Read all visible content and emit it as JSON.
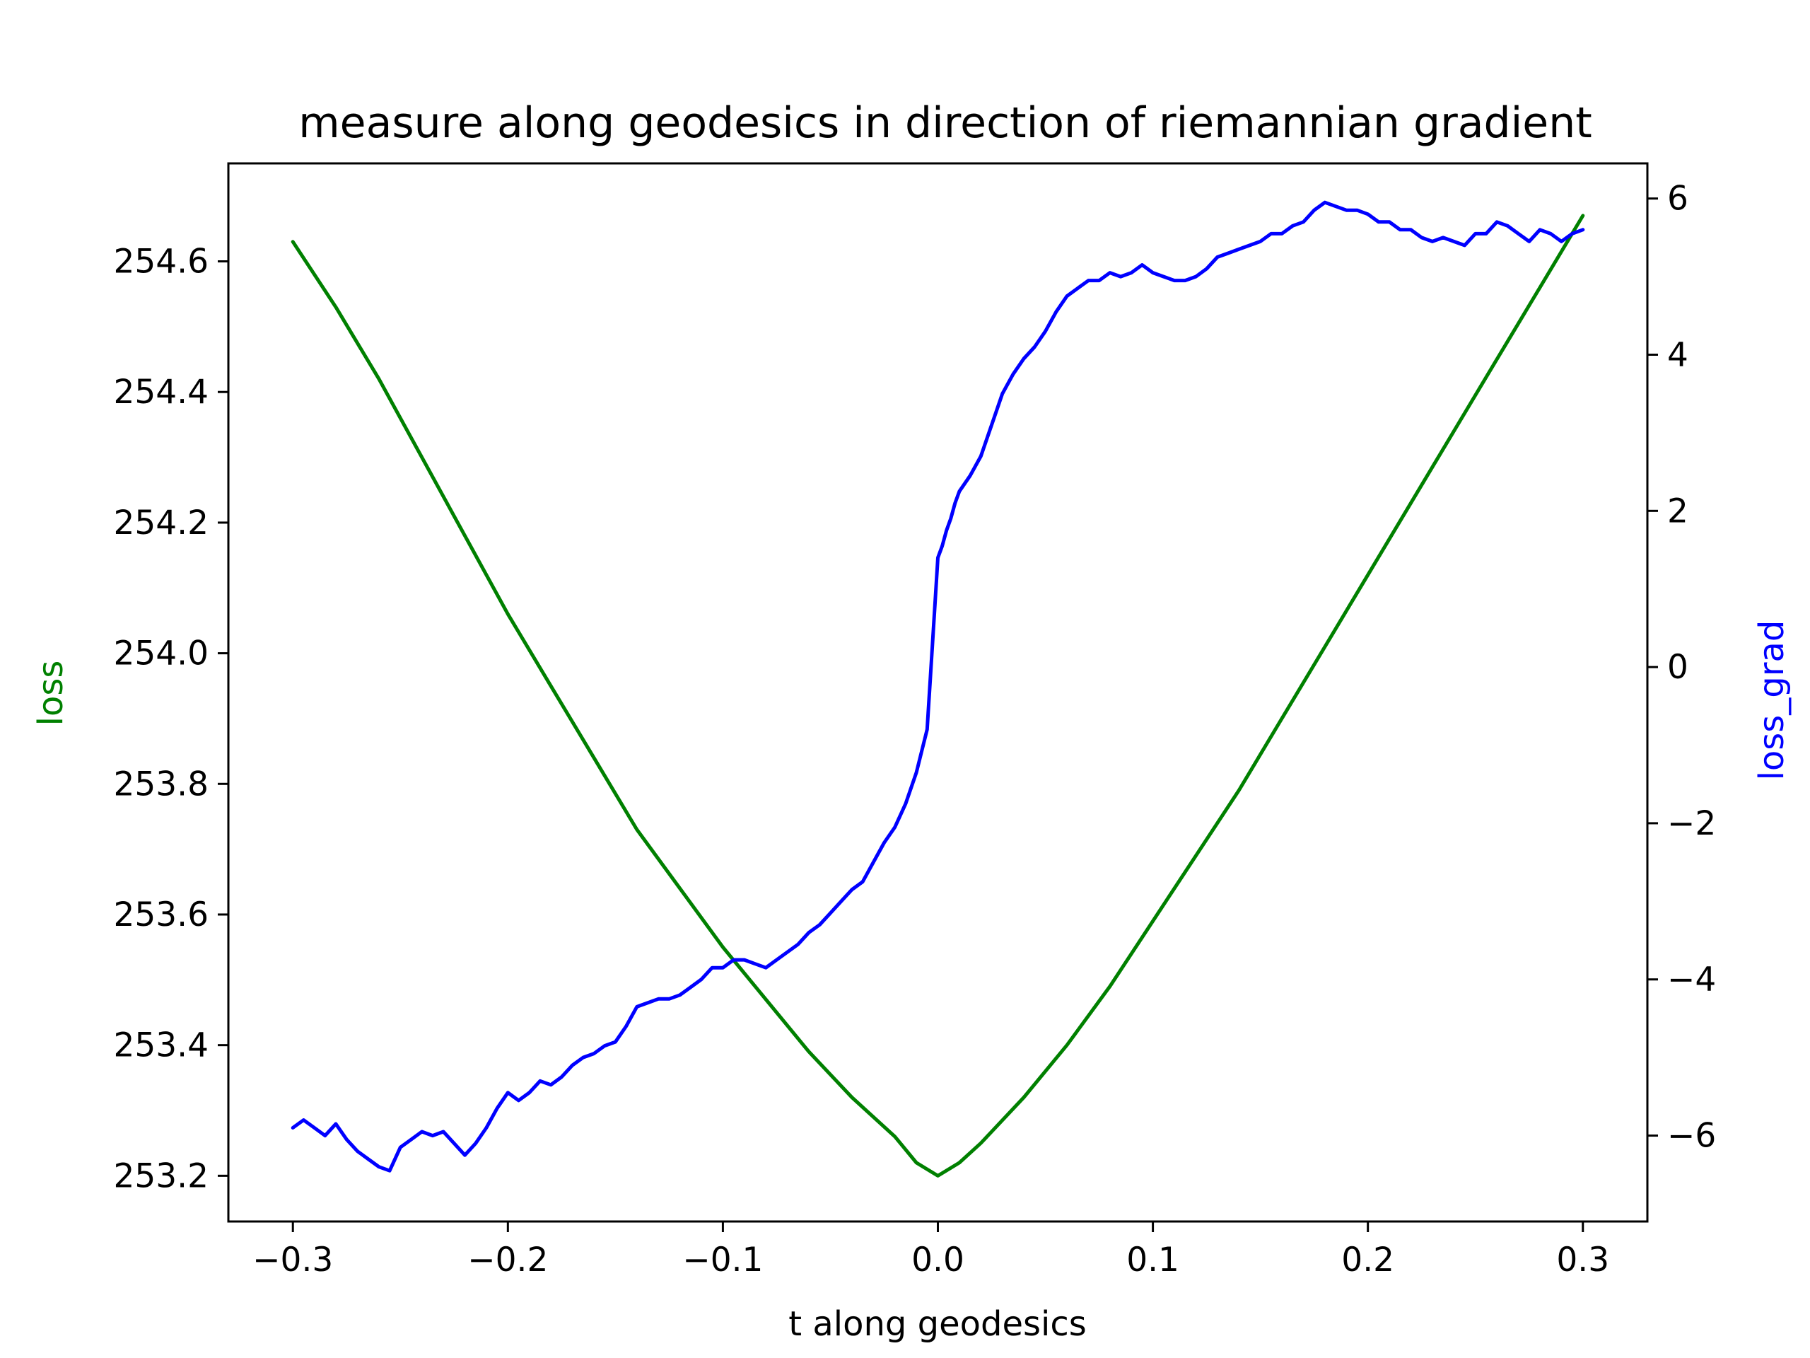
{
  "chart_data": {
    "type": "line",
    "title": "measure along geodesics in direction of riemannian gradient",
    "xlabel": "t along geodesics",
    "ylabel_left": "loss",
    "ylabel_right": "loss_grad",
    "xlim": [
      -0.33,
      0.33
    ],
    "ylim_left": [
      253.13,
      254.75
    ],
    "ylim_right": [
      -7.1,
      6.45
    ],
    "xticks": [
      "−0.3",
      "−0.2",
      "−0.1",
      "0.0",
      "0.1",
      "0.2",
      "0.3"
    ],
    "xtick_values": [
      -0.3,
      -0.2,
      -0.1,
      0.0,
      0.1,
      0.2,
      0.3
    ],
    "yticks_left": [
      "253.2",
      "253.4",
      "253.6",
      "253.8",
      "254.0",
      "254.2",
      "254.4",
      "254.6"
    ],
    "ytick_values_left": [
      253.2,
      253.4,
      253.6,
      253.8,
      254.0,
      254.2,
      254.4,
      254.6
    ],
    "yticks_right": [
      "−6",
      "−4",
      "−2",
      "0",
      "2",
      "4",
      "6"
    ],
    "ytick_values_right": [
      -6,
      -4,
      -2,
      0,
      2,
      4,
      6
    ],
    "grid": false,
    "series": [
      {
        "name": "loss",
        "axis": "left",
        "color": "#008000",
        "x": [
          -0.3,
          -0.28,
          -0.26,
          -0.24,
          -0.22,
          -0.2,
          -0.18,
          -0.16,
          -0.14,
          -0.12,
          -0.1,
          -0.08,
          -0.06,
          -0.04,
          -0.02,
          -0.01,
          0.0,
          0.01,
          0.02,
          0.04,
          0.06,
          0.08,
          0.1,
          0.12,
          0.14,
          0.16,
          0.18,
          0.2,
          0.22,
          0.24,
          0.26,
          0.28,
          0.3
        ],
        "y": [
          254.63,
          254.53,
          254.42,
          254.3,
          254.18,
          254.06,
          253.95,
          253.84,
          253.73,
          253.64,
          253.55,
          253.47,
          253.39,
          253.32,
          253.26,
          253.22,
          253.2,
          253.22,
          253.25,
          253.32,
          253.4,
          253.49,
          253.59,
          253.69,
          253.79,
          253.9,
          254.01,
          254.12,
          254.23,
          254.34,
          254.45,
          254.56,
          254.67
        ]
      },
      {
        "name": "loss_grad",
        "axis": "right",
        "color": "#0000ff",
        "x": [
          -0.3,
          -0.295,
          -0.29,
          -0.285,
          -0.28,
          -0.275,
          -0.27,
          -0.265,
          -0.26,
          -0.255,
          -0.25,
          -0.245,
          -0.24,
          -0.235,
          -0.23,
          -0.225,
          -0.22,
          -0.215,
          -0.21,
          -0.205,
          -0.2,
          -0.195,
          -0.19,
          -0.185,
          -0.18,
          -0.175,
          -0.17,
          -0.165,
          -0.16,
          -0.155,
          -0.15,
          -0.145,
          -0.14,
          -0.135,
          -0.13,
          -0.125,
          -0.12,
          -0.115,
          -0.11,
          -0.105,
          -0.1,
          -0.095,
          -0.09,
          -0.085,
          -0.08,
          -0.075,
          -0.07,
          -0.065,
          -0.06,
          -0.055,
          -0.05,
          -0.045,
          -0.04,
          -0.035,
          -0.03,
          -0.025,
          -0.02,
          -0.015,
          -0.01,
          -0.005,
          0.0,
          0.002,
          0.004,
          0.006,
          0.008,
          0.01,
          0.015,
          0.02,
          0.025,
          0.03,
          0.035,
          0.04,
          0.045,
          0.05,
          0.055,
          0.06,
          0.065,
          0.07,
          0.075,
          0.08,
          0.085,
          0.09,
          0.095,
          0.1,
          0.105,
          0.11,
          0.115,
          0.12,
          0.125,
          0.13,
          0.135,
          0.14,
          0.145,
          0.15,
          0.155,
          0.16,
          0.165,
          0.17,
          0.175,
          0.18,
          0.185,
          0.19,
          0.195,
          0.2,
          0.205,
          0.21,
          0.215,
          0.22,
          0.225,
          0.23,
          0.235,
          0.24,
          0.245,
          0.25,
          0.255,
          0.26,
          0.265,
          0.27,
          0.275,
          0.28,
          0.285,
          0.29,
          0.295,
          0.3
        ],
        "y": [
          -5.9,
          -5.8,
          -5.9,
          -6.0,
          -5.85,
          -6.05,
          -6.2,
          -6.3,
          -6.4,
          -6.45,
          -6.15,
          -6.05,
          -5.95,
          -6.0,
          -5.95,
          -6.1,
          -6.25,
          -6.1,
          -5.9,
          -5.65,
          -5.45,
          -5.55,
          -5.45,
          -5.3,
          -5.35,
          -5.25,
          -5.1,
          -5.0,
          -4.95,
          -4.85,
          -4.8,
          -4.6,
          -4.35,
          -4.3,
          -4.25,
          -4.25,
          -4.2,
          -4.1,
          -4.0,
          -3.85,
          -3.85,
          -3.75,
          -3.75,
          -3.8,
          -3.85,
          -3.75,
          -3.65,
          -3.55,
          -3.4,
          -3.3,
          -3.15,
          -3.0,
          -2.85,
          -2.75,
          -2.5,
          -2.25,
          -2.05,
          -1.75,
          -1.35,
          -0.8,
          1.4,
          1.55,
          1.75,
          1.9,
          2.1,
          2.25,
          2.45,
          2.7,
          3.1,
          3.5,
          3.75,
          3.95,
          4.1,
          4.3,
          4.55,
          4.75,
          4.85,
          4.95,
          4.95,
          5.05,
          5.0,
          5.05,
          5.15,
          5.05,
          5.0,
          4.95,
          4.95,
          5.0,
          5.1,
          5.25,
          5.3,
          5.35,
          5.4,
          5.45,
          5.55,
          5.55,
          5.65,
          5.7,
          5.85,
          5.95,
          5.9,
          5.85,
          5.85,
          5.8,
          5.7,
          5.7,
          5.6,
          5.6,
          5.5,
          5.45,
          5.5,
          5.45,
          5.4,
          5.55,
          5.55,
          5.7,
          5.65,
          5.55,
          5.45,
          5.6,
          5.55,
          5.45,
          5.55,
          5.6
        ]
      }
    ]
  }
}
